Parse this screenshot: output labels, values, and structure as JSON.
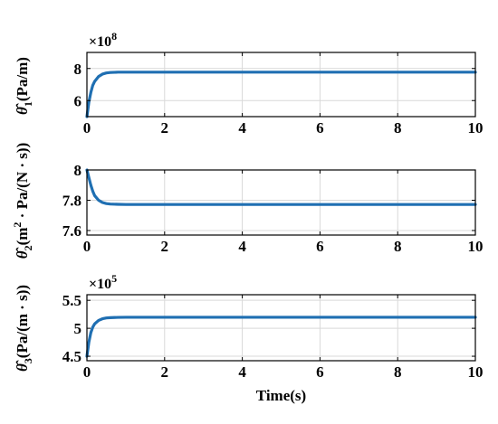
{
  "chart_data": [
    {
      "type": "line",
      "ylabel": "θ̂1(Pa/m)",
      "ylabel_parts": [
        "θ̂",
        "1",
        "(Pa/m)"
      ],
      "exponent_label": "×10",
      "exponent_power": "8",
      "xlim": [
        0,
        10
      ],
      "ylim": [
        5,
        9
      ],
      "xticks": [
        "0",
        "2",
        "4",
        "6",
        "8",
        "10"
      ],
      "yticks": [
        "6",
        "8"
      ],
      "ytick_values": [
        6,
        8
      ],
      "grid": true,
      "series": [
        {
          "color": "#1f6fb2",
          "x": [
            0,
            0.05,
            0.1,
            0.15,
            0.2,
            0.3,
            0.4,
            0.5,
            0.6,
            0.8,
            1.0,
            1.5,
            2,
            4,
            6,
            8,
            10
          ],
          "y": [
            5.0,
            5.9,
            6.5,
            6.95,
            7.2,
            7.5,
            7.65,
            7.72,
            7.75,
            7.77,
            7.77,
            7.77,
            7.77,
            7.77,
            7.77,
            7.77,
            7.77
          ]
        }
      ]
    },
    {
      "type": "line",
      "ylabel": "θ̂2(m²·Pa/(N·s))",
      "ylabel_parts": [
        "θ̂",
        "2",
        "(m",
        "2",
        " · Pa/(N · s))"
      ],
      "xlim": [
        0,
        10
      ],
      "ylim": [
        7.57,
        8.0
      ],
      "xticks": [
        "0",
        "2",
        "4",
        "6",
        "8",
        "10"
      ],
      "yticks": [
        "7.6",
        "7.8",
        "8"
      ],
      "ytick_values": [
        7.6,
        7.8,
        8.0
      ],
      "grid": true,
      "series": [
        {
          "color": "#1f6fb2",
          "x": [
            0,
            0.05,
            0.1,
            0.15,
            0.2,
            0.3,
            0.4,
            0.5,
            0.6,
            0.8,
            1.0,
            1.5,
            2,
            4,
            6,
            8,
            10
          ],
          "y": [
            8.0,
            7.95,
            7.9,
            7.86,
            7.83,
            7.8,
            7.785,
            7.778,
            7.775,
            7.773,
            7.772,
            7.772,
            7.772,
            7.772,
            7.772,
            7.772,
            7.772
          ]
        }
      ]
    },
    {
      "type": "line",
      "ylabel": "θ̂3(Pa/(m·s))",
      "ylabel_parts": [
        "θ̂",
        "3",
        "(Pa/(m · s))"
      ],
      "exponent_label": "×10",
      "exponent_power": "5",
      "xlabel": "Time(s)",
      "xlim": [
        0,
        10
      ],
      "ylim": [
        4.42,
        5.6
      ],
      "xticks": [
        "0",
        "2",
        "4",
        "6",
        "8",
        "10"
      ],
      "yticks": [
        "4.5",
        "5",
        "5.5"
      ],
      "ytick_values": [
        4.5,
        5.0,
        5.5
      ],
      "grid": true,
      "series": [
        {
          "color": "#1f6fb2",
          "x": [
            0,
            0.05,
            0.1,
            0.15,
            0.2,
            0.3,
            0.4,
            0.5,
            0.6,
            0.8,
            1.0,
            1.5,
            2,
            4,
            6,
            8,
            10
          ],
          "y": [
            4.5,
            4.75,
            4.92,
            5.02,
            5.08,
            5.14,
            5.17,
            5.185,
            5.19,
            5.195,
            5.197,
            5.197,
            5.197,
            5.197,
            5.197,
            5.197,
            5.197
          ]
        }
      ]
    }
  ]
}
